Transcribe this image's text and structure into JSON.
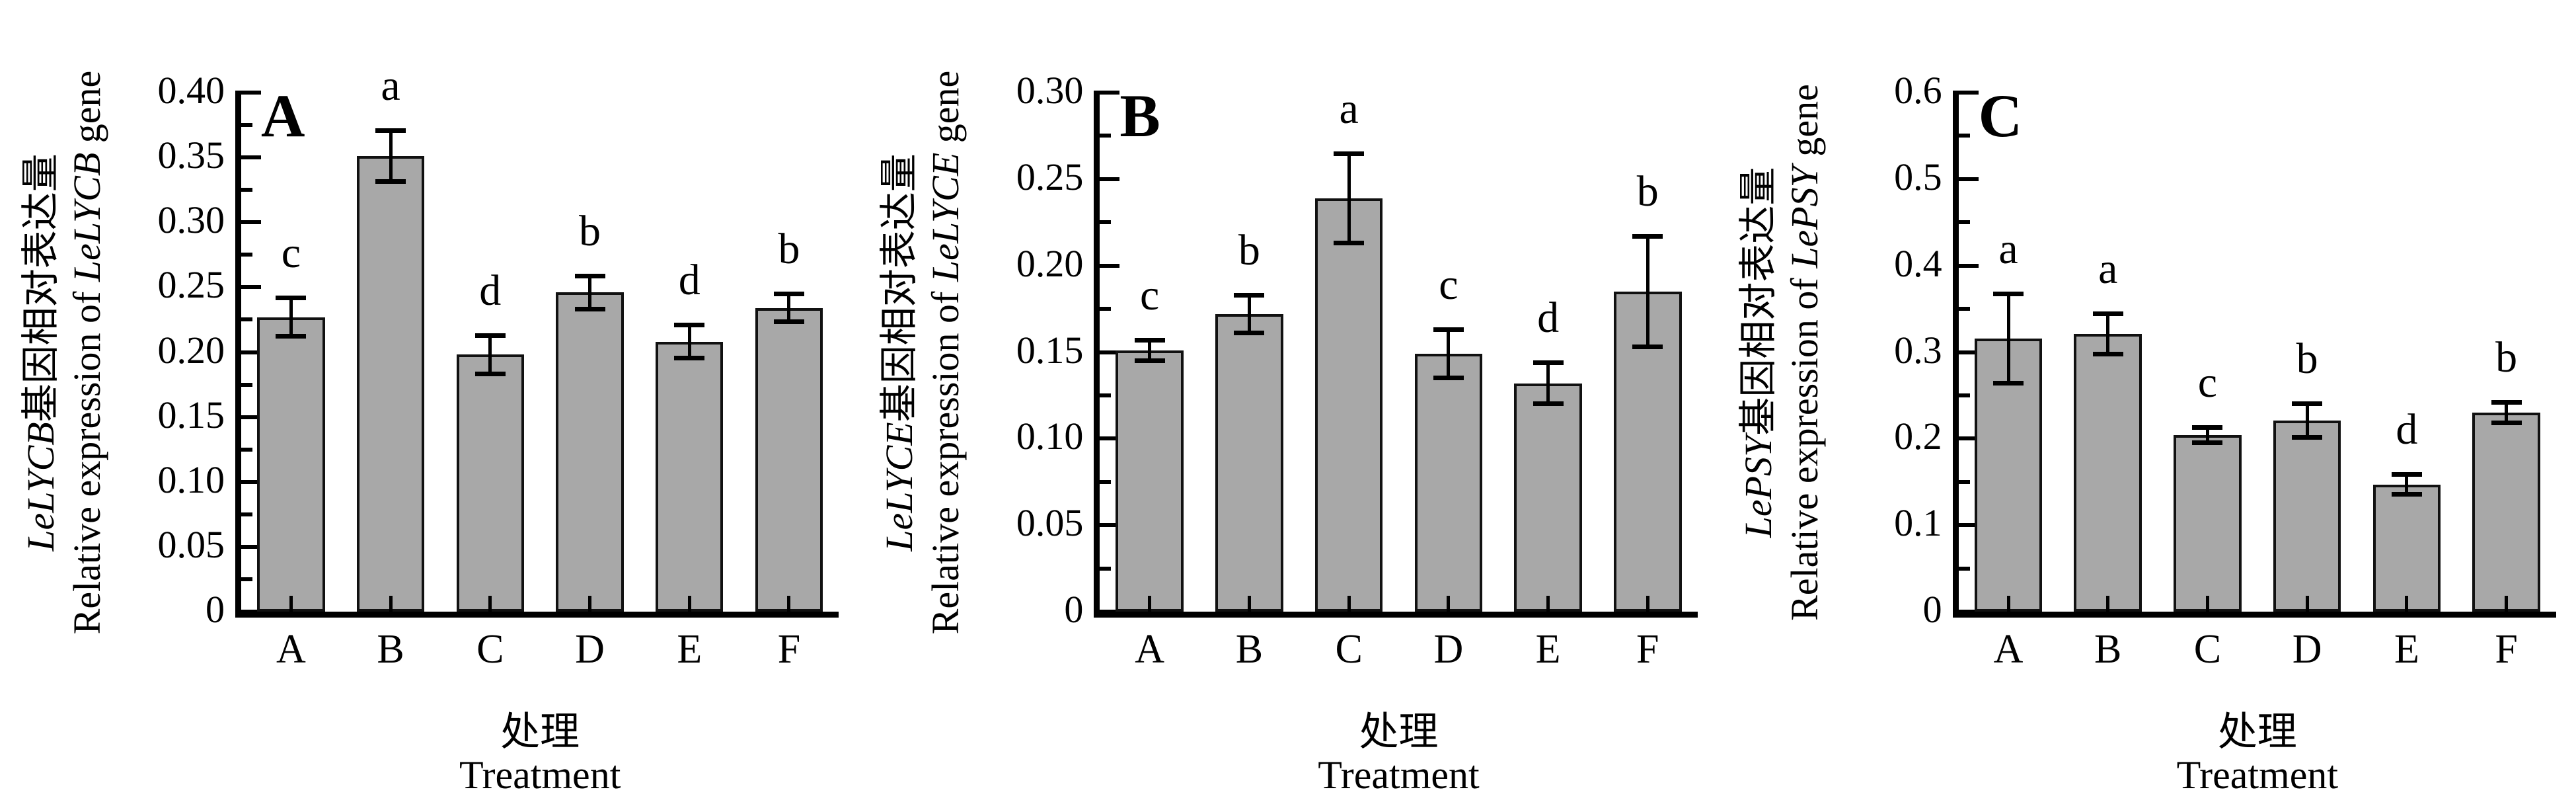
{
  "figure": {
    "xlabel_zh": "处理",
    "xlabel_en": "Treatment",
    "bar_color": "#a8a8a8",
    "bar_border_color": "#111111",
    "axis_color": "#000000",
    "text_color": "#000000"
  },
  "chart_data": [
    {
      "type": "bar",
      "panel_label": "A",
      "gene": "LeLYCB",
      "ylabel_zh_suffix": "基因相对表达量",
      "ylabel_en_prefix": "Relative expression of ",
      "ylabel_en_suffix": " gene",
      "xlabel_zh": "处理",
      "xlabel_en": "Treatment",
      "categories": [
        "A",
        "B",
        "C",
        "D",
        "E",
        "F"
      ],
      "values": [
        0.227,
        0.351,
        0.198,
        0.246,
        0.208,
        0.234
      ],
      "errors": [
        0.015,
        0.02,
        0.015,
        0.013,
        0.013,
        0.011
      ],
      "sig_letters": [
        "c",
        "a",
        "d",
        "b",
        "d",
        "b"
      ],
      "ylim": [
        0,
        0.4
      ],
      "ytick_step": 0.05,
      "ytick_labels": [
        "0",
        "0.05",
        "0.10",
        "0.15",
        "0.20",
        "0.25",
        "0.30",
        "0.35",
        "0.40"
      ],
      "grid": "off",
      "legend": "none"
    },
    {
      "type": "bar",
      "panel_label": "B",
      "gene": "LeLYCE",
      "ylabel_zh_suffix": "基因相对表达量",
      "ylabel_en_prefix": "Relative expression of ",
      "ylabel_en_suffix": " gene",
      "xlabel_zh": "处理",
      "xlabel_en": "Treatment",
      "categories": [
        "A",
        "B",
        "C",
        "D",
        "E",
        "F"
      ],
      "values": [
        0.151,
        0.172,
        0.239,
        0.149,
        0.132,
        0.185
      ],
      "errors": [
        0.006,
        0.011,
        0.026,
        0.014,
        0.012,
        0.032
      ],
      "sig_letters": [
        "c",
        "b",
        "a",
        "c",
        "d",
        "b"
      ],
      "ylim": [
        0,
        0.3
      ],
      "ytick_step": 0.05,
      "ytick_labels": [
        "0",
        "0.05",
        "0.10",
        "0.15",
        "0.20",
        "0.25",
        "0.30"
      ],
      "grid": "off",
      "legend": "none"
    },
    {
      "type": "bar",
      "panel_label": "C",
      "gene": "LePSY",
      "ylabel_zh_suffix": "基因相对表达量",
      "ylabel_en_prefix": "Relative expression of ",
      "ylabel_en_suffix": " gene",
      "xlabel_zh": "处理",
      "xlabel_en": "Treatment",
      "categories": [
        "A",
        "B",
        "C",
        "D",
        "E",
        "F"
      ],
      "values": [
        0.316,
        0.321,
        0.204,
        0.221,
        0.147,
        0.23
      ],
      "errors": [
        0.052,
        0.024,
        0.009,
        0.02,
        0.012,
        0.012
      ],
      "sig_letters": [
        "a",
        "a",
        "c",
        "b",
        "d",
        "b"
      ],
      "ylim": [
        0,
        0.6
      ],
      "ytick_step": 0.1,
      "ytick_labels": [
        "0",
        "0.1",
        "0.2",
        "0.3",
        "0.4",
        "0.5",
        "0.6"
      ],
      "grid": "off",
      "legend": "none"
    }
  ]
}
